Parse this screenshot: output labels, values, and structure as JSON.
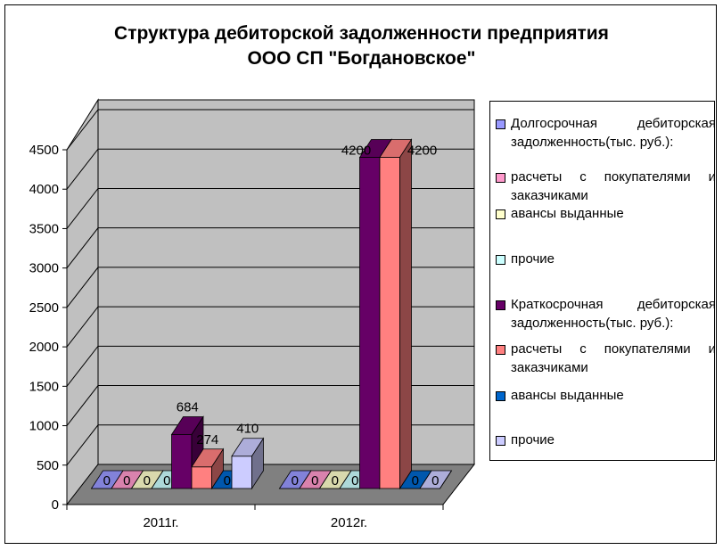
{
  "chart_data": {
    "type": "bar",
    "title": [
      "Структура дебиторской задолженности предприятия",
      "ООО СП \"Богдановское\""
    ],
    "categories": [
      "2011г.",
      "2012г."
    ],
    "y_ticks": [
      "0",
      "500",
      "1000",
      "1500",
      "2000",
      "2500",
      "3000",
      "3500",
      "4000",
      "4500"
    ],
    "ylim": [
      0,
      4500
    ],
    "grid": true,
    "legend_position": "right",
    "series": [
      {
        "name": "Долгосрочная дебиторская задолженность(тыс. руб.):",
        "values": [
          0,
          0
        ],
        "labels": [
          "0",
          "0"
        ],
        "color": "#9999ff"
      },
      {
        "name": "расчеты с покупателями и заказчиками",
        "values": [
          0,
          0
        ],
        "labels": [
          "0",
          "0"
        ],
        "color": "#ff99cc"
      },
      {
        "name": "авансы выданные",
        "values": [
          0,
          0
        ],
        "labels": [
          "0",
          "0"
        ],
        "color": "#ffffcc"
      },
      {
        "name": "прочие",
        "values": [
          0,
          0
        ],
        "labels": [
          "0",
          "0"
        ],
        "color": "#ccffff"
      },
      {
        "name": "Краткосрочная дебиторская задолженность(тыс. руб.):",
        "values": [
          684,
          4200
        ],
        "labels": [
          "684",
          "4200"
        ],
        "color": "#660066"
      },
      {
        "name": "расчеты с покупателями и заказчиками",
        "values": [
          274,
          4200
        ],
        "labels": [
          "274",
          "4200"
        ],
        "color": "#ff8080"
      },
      {
        "name": "авансы выданные",
        "values": [
          0,
          0
        ],
        "labels": [
          "0",
          "0"
        ],
        "color": "#0066cc"
      },
      {
        "name": "прочие",
        "values": [
          410,
          0
        ],
        "labels": [
          "410",
          "0"
        ],
        "color": "#ccccff"
      }
    ]
  }
}
